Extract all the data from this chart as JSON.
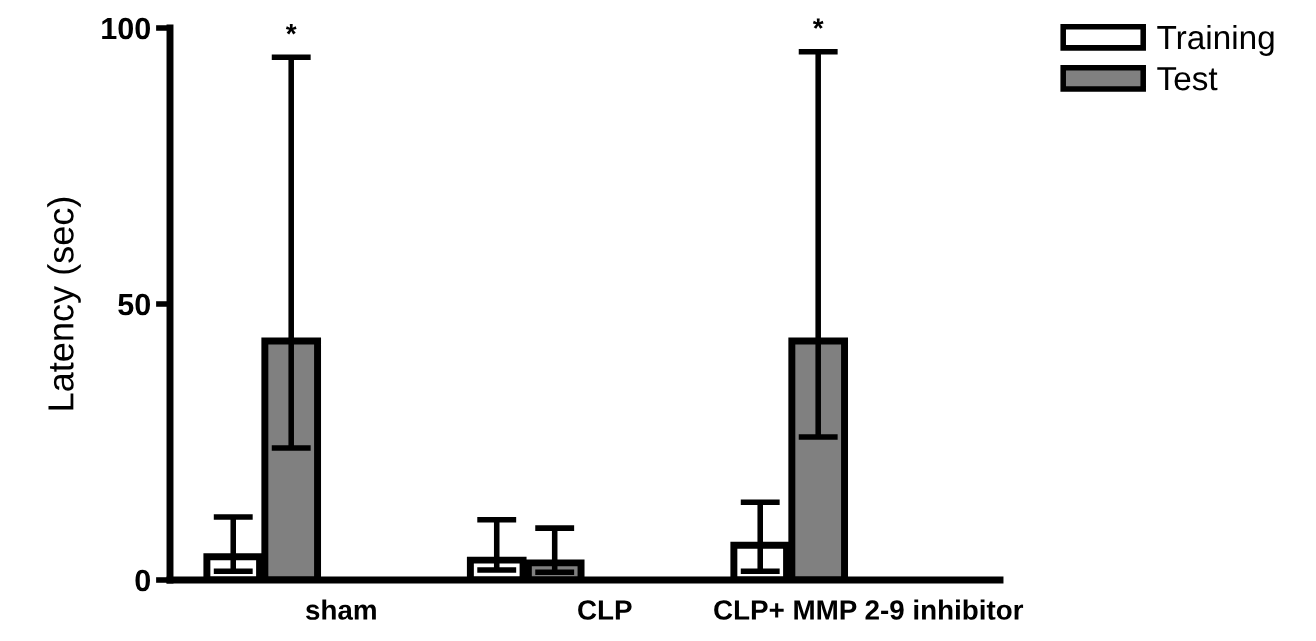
{
  "chart_data": {
    "type": "bar",
    "ylabel": "Latency (sec)",
    "categories": [
      "sham",
      "CLP",
      "CLP+ MMP 2-9 inhibitor"
    ],
    "series": [
      {
        "name": "Training",
        "color": "#ffffff",
        "values": [
          4.2,
          3.6,
          6.3
        ],
        "errors": [
          [
            1.6,
            11.4
          ],
          [
            1.8,
            10.9
          ],
          [
            1.6,
            14.1
          ]
        ]
      },
      {
        "name": "Test",
        "color": "#808080",
        "values": [
          43.3,
          3.1,
          43.3
        ],
        "errors": [
          [
            23.9,
            94.7
          ],
          [
            1.4,
            9.4
          ],
          [
            25.9,
            95.7
          ]
        ]
      }
    ],
    "ylim": [
      0,
      100
    ],
    "yticks": [
      0,
      50,
      100
    ],
    "grid": false,
    "legend": "top right",
    "annotations": [
      "*",
      "*"
    ]
  }
}
